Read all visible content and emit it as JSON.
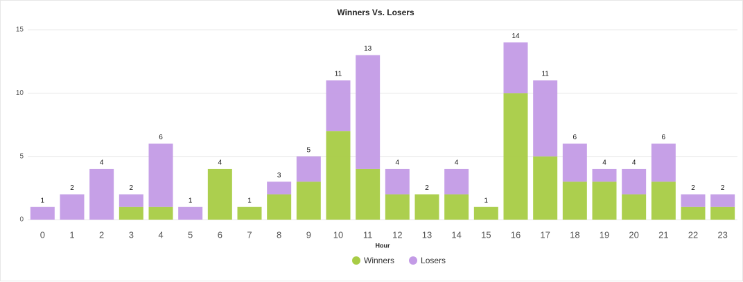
{
  "chart_data": {
    "type": "stacked_bar",
    "title": "Winners Vs. Losers",
    "x_label": "Hour",
    "categories": [
      "0",
      "1",
      "2",
      "3",
      "4",
      "5",
      "6",
      "7",
      "8",
      "9",
      "10",
      "11",
      "12",
      "13",
      "14",
      "15",
      "16",
      "17",
      "18",
      "19",
      "20",
      "21",
      "22",
      "23"
    ],
    "series": [
      {
        "name": "Winners",
        "color": "#a8cc45",
        "values": [
          0,
          0,
          0,
          1,
          1,
          0,
          4,
          1,
          2,
          3,
          7,
          4,
          2,
          2,
          2,
          1,
          10,
          5,
          3,
          3,
          2,
          3,
          1,
          1
        ]
      },
      {
        "name": "Losers",
        "color": "#c39be6",
        "values": [
          1,
          2,
          4,
          1,
          5,
          1,
          0,
          0,
          1,
          2,
          4,
          9,
          2,
          0,
          2,
          0,
          4,
          6,
          3,
          1,
          2,
          3,
          1,
          1
        ]
      }
    ],
    "totals": [
      1,
      2,
      4,
      2,
      6,
      1,
      4,
      1,
      3,
      5,
      11,
      13,
      4,
      2,
      4,
      1,
      14,
      11,
      6,
      4,
      4,
      6,
      2,
      2
    ],
    "ylim": [
      0,
      15
    ],
    "yticks": [
      0,
      5,
      10,
      15
    ],
    "grid": true
  }
}
